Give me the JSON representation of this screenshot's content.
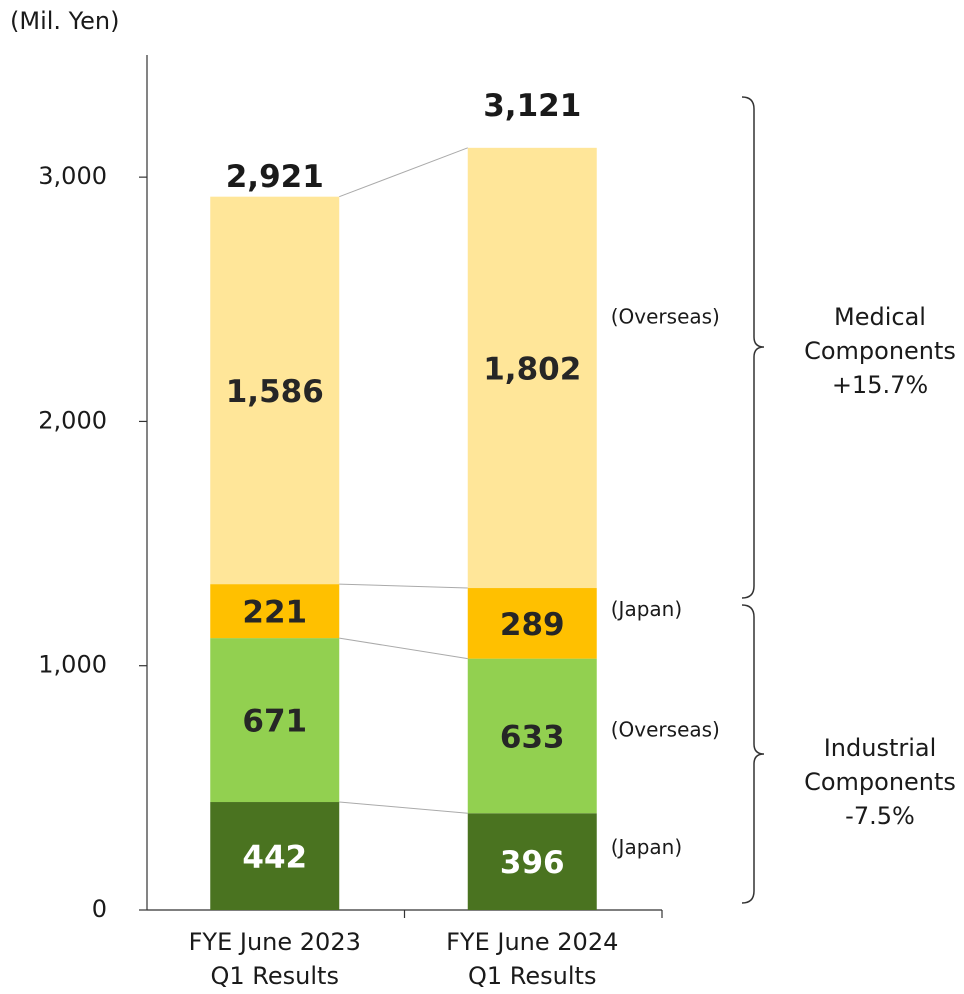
{
  "chart_data": {
    "type": "stacked_bar",
    "unit_label": "(Mil. Yen)",
    "categories": [
      "FYE June 2023\nQ1 Results",
      "FYE June 2024\nQ1 Results"
    ],
    "series": [
      {
        "name": "(Japan)",
        "color": "#4a7320",
        "label_color": "#ffffff",
        "values": [
          442,
          396
        ]
      },
      {
        "name": "(Overseas)",
        "color": "#92d050",
        "label_color": "#262626",
        "values": [
          671,
          633
        ]
      },
      {
        "name": "(Japan)",
        "color": "#ffc000",
        "label_color": "#262626",
        "values": [
          221,
          289
        ]
      },
      {
        "name": "(Overseas)",
        "color": "#ffe699",
        "label_color": "#262626",
        "values": [
          1586,
          1802
        ],
        "value_labels": [
          "1,586",
          "1,802"
        ]
      }
    ],
    "totals": [
      2921,
      3121
    ],
    "total_labels": [
      "2,921",
      "3,121"
    ],
    "groups": [
      "Medical\nComponents\n+15.7%",
      "Industrial\nComponents\n-7.5%"
    ],
    "ylim": [
      0,
      3500
    ],
    "yticks": [
      0,
      {
        "value": 1000,
        "label": "1,000"
      },
      {
        "value": 2000,
        "label": "2,000"
      },
      {
        "value": 3000,
        "label": "3,000"
      }
    ]
  }
}
